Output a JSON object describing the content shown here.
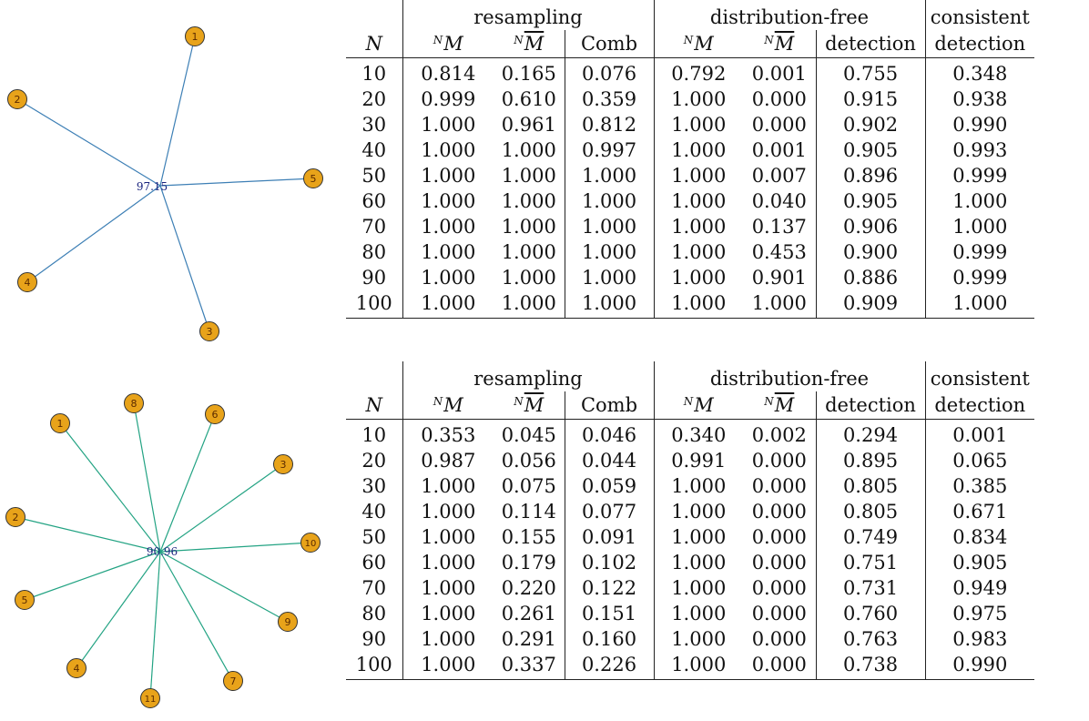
{
  "colors": {
    "node_fill": "#e8a31a",
    "edge_graph1": "#3d7fb5",
    "edge_graph2": "#23a383",
    "center_label": "#1a237e"
  },
  "graph1": {
    "center_label": "97.15",
    "nodes": [
      "1",
      "2",
      "3",
      "4",
      "5"
    ]
  },
  "graph2": {
    "center_label": "90.96",
    "nodes": [
      "1",
      "2",
      "3",
      "4",
      "5",
      "6",
      "7",
      "8",
      "9",
      "10",
      "11"
    ]
  },
  "header": {
    "group_resampling": "resampling",
    "group_distfree": "distribution-free",
    "group_consistent": "consistent",
    "col_N": "N",
    "col_M_sup": "N",
    "col_M": "M",
    "col_Mbar_sup": "N",
    "col_Mbar": "M",
    "col_comb": "Comb",
    "col_detection": "detection",
    "col_consistent_detection": "detection"
  },
  "table1": {
    "rows": [
      [
        "10",
        "0.814",
        "0.165",
        "0.076",
        "0.792",
        "0.001",
        "0.755",
        "0.348"
      ],
      [
        "20",
        "0.999",
        "0.610",
        "0.359",
        "1.000",
        "0.000",
        "0.915",
        "0.938"
      ],
      [
        "30",
        "1.000",
        "0.961",
        "0.812",
        "1.000",
        "0.000",
        "0.902",
        "0.990"
      ],
      [
        "40",
        "1.000",
        "1.000",
        "0.997",
        "1.000",
        "0.001",
        "0.905",
        "0.993"
      ],
      [
        "50",
        "1.000",
        "1.000",
        "1.000",
        "1.000",
        "0.007",
        "0.896",
        "0.999"
      ],
      [
        "60",
        "1.000",
        "1.000",
        "1.000",
        "1.000",
        "0.040",
        "0.905",
        "1.000"
      ],
      [
        "70",
        "1.000",
        "1.000",
        "1.000",
        "1.000",
        "0.137",
        "0.906",
        "1.000"
      ],
      [
        "80",
        "1.000",
        "1.000",
        "1.000",
        "1.000",
        "0.453",
        "0.900",
        "0.999"
      ],
      [
        "90",
        "1.000",
        "1.000",
        "1.000",
        "1.000",
        "0.901",
        "0.886",
        "0.999"
      ],
      [
        "100",
        "1.000",
        "1.000",
        "1.000",
        "1.000",
        "1.000",
        "0.909",
        "1.000"
      ]
    ]
  },
  "table2": {
    "rows": [
      [
        "10",
        "0.353",
        "0.045",
        "0.046",
        "0.340",
        "0.002",
        "0.294",
        "0.001"
      ],
      [
        "20",
        "0.987",
        "0.056",
        "0.044",
        "0.991",
        "0.000",
        "0.895",
        "0.065"
      ],
      [
        "30",
        "1.000",
        "0.075",
        "0.059",
        "1.000",
        "0.000",
        "0.805",
        "0.385"
      ],
      [
        "40",
        "1.000",
        "0.114",
        "0.077",
        "1.000",
        "0.000",
        "0.805",
        "0.671"
      ],
      [
        "50",
        "1.000",
        "0.155",
        "0.091",
        "1.000",
        "0.000",
        "0.749",
        "0.834"
      ],
      [
        "60",
        "1.000",
        "0.179",
        "0.102",
        "1.000",
        "0.000",
        "0.751",
        "0.905"
      ],
      [
        "70",
        "1.000",
        "0.220",
        "0.122",
        "1.000",
        "0.000",
        "0.731",
        "0.949"
      ],
      [
        "80",
        "1.000",
        "0.261",
        "0.151",
        "1.000",
        "0.000",
        "0.760",
        "0.975"
      ],
      [
        "90",
        "1.000",
        "0.291",
        "0.160",
        "1.000",
        "0.000",
        "0.763",
        "0.983"
      ],
      [
        "100",
        "1.000",
        "0.337",
        "0.226",
        "1.000",
        "0.000",
        "0.738",
        "0.990"
      ]
    ]
  }
}
